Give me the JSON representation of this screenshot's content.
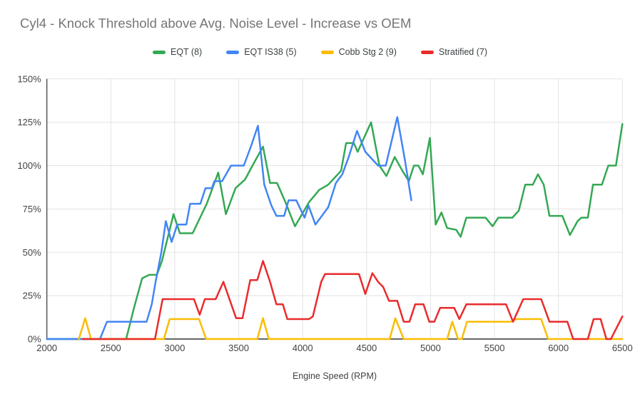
{
  "title": "Cyl4 - Knock Threshold above Avg. Noise Level - Increase vs OEM",
  "axes": {
    "x": {
      "label": "Engine Speed (RPM)",
      "min": 2000,
      "max": 6500,
      "ticks": [
        2000,
        2500,
        3000,
        3500,
        4000,
        4500,
        5000,
        5500,
        6000,
        6500
      ]
    },
    "y": {
      "label": "",
      "min": 0,
      "max": 150,
      "tick_step_pct": 25,
      "ticks": [
        "0%",
        "25%",
        "50%",
        "75%",
        "100%",
        "125%",
        "150%"
      ]
    }
  },
  "style": {
    "grid_color": "#e3e3e3",
    "axis_color": "#333333",
    "title_color": "#757575",
    "background": "#ffffff"
  },
  "chart_data": {
    "type": "line",
    "title": "Cyl4 - Knock Threshold above Avg. Noise Level - Increase vs OEM",
    "xlabel": "Engine Speed (RPM)",
    "ylabel": "",
    "x_range": [
      2000,
      6500
    ],
    "y_range_pct": [
      0,
      150
    ],
    "grid": true,
    "legend_position": "top",
    "series": [
      {
        "name": "EQT (8)",
        "color": "#34a853",
        "points": [
          [
            2000,
            0
          ],
          [
            2620,
            0
          ],
          [
            2685,
            19
          ],
          [
            2745,
            35
          ],
          [
            2800,
            37
          ],
          [
            2860,
            37
          ],
          [
            2900,
            45
          ],
          [
            2950,
            60
          ],
          [
            2990,
            72
          ],
          [
            3040,
            61
          ],
          [
            3140,
            61
          ],
          [
            3250,
            78
          ],
          [
            3340,
            96
          ],
          [
            3400,
            72
          ],
          [
            3475,
            87
          ],
          [
            3550,
            92
          ],
          [
            3600,
            99
          ],
          [
            3690,
            111
          ],
          [
            3745,
            90
          ],
          [
            3800,
            90
          ],
          [
            3865,
            79
          ],
          [
            3940,
            65
          ],
          [
            4050,
            79
          ],
          [
            4130,
            86
          ],
          [
            4200,
            89
          ],
          [
            4300,
            97
          ],
          [
            4340,
            113
          ],
          [
            4400,
            113
          ],
          [
            4430,
            108
          ],
          [
            4535,
            125
          ],
          [
            4600,
            100
          ],
          [
            4655,
            94
          ],
          [
            4720,
            105
          ],
          [
            4780,
            97
          ],
          [
            4830,
            91
          ],
          [
            4870,
            100
          ],
          [
            4905,
            100
          ],
          [
            4940,
            95
          ],
          [
            4995,
            116
          ],
          [
            5040,
            66
          ],
          [
            5085,
            73
          ],
          [
            5130,
            64
          ],
          [
            5200,
            63
          ],
          [
            5235,
            59
          ],
          [
            5280,
            70
          ],
          [
            5430,
            70
          ],
          [
            5485,
            65
          ],
          [
            5530,
            70
          ],
          [
            5640,
            70
          ],
          [
            5690,
            74
          ],
          [
            5740,
            89
          ],
          [
            5800,
            89
          ],
          [
            5840,
            95
          ],
          [
            5885,
            89
          ],
          [
            5930,
            71
          ],
          [
            6030,
            71
          ],
          [
            6090,
            60
          ],
          [
            6150,
            68
          ],
          [
            6180,
            70
          ],
          [
            6230,
            70
          ],
          [
            6270,
            89
          ],
          [
            6340,
            89
          ],
          [
            6390,
            100
          ],
          [
            6450,
            100
          ],
          [
            6500,
            124
          ]
        ]
      },
      {
        "name": "EQT IS38 (5)",
        "color": "#4285f4",
        "points": [
          [
            2000,
            0
          ],
          [
            2415,
            0
          ],
          [
            2470,
            10
          ],
          [
            2780,
            10
          ],
          [
            2820,
            20
          ],
          [
            2850,
            33
          ],
          [
            2895,
            50
          ],
          [
            2930,
            68
          ],
          [
            2975,
            56
          ],
          [
            3020,
            66
          ],
          [
            3090,
            66
          ],
          [
            3120,
            78
          ],
          [
            3200,
            78
          ],
          [
            3240,
            87
          ],
          [
            3290,
            87
          ],
          [
            3310,
            91
          ],
          [
            3370,
            91
          ],
          [
            3440,
            100
          ],
          [
            3540,
            100
          ],
          [
            3600,
            112
          ],
          [
            3650,
            123
          ],
          [
            3700,
            89
          ],
          [
            3755,
            77
          ],
          [
            3795,
            71
          ],
          [
            3855,
            71
          ],
          [
            3890,
            80
          ],
          [
            3950,
            80
          ],
          [
            4015,
            70
          ],
          [
            4045,
            77
          ],
          [
            4100,
            66
          ],
          [
            4150,
            71
          ],
          [
            4200,
            76
          ],
          [
            4260,
            90
          ],
          [
            4310,
            95
          ],
          [
            4360,
            105
          ],
          [
            4425,
            120
          ],
          [
            4490,
            108
          ],
          [
            4590,
            100
          ],
          [
            4650,
            100
          ],
          [
            4740,
            128
          ],
          [
            4800,
            103
          ],
          [
            4850,
            80
          ]
        ]
      },
      {
        "name": "Cobb Stg 2 (9)",
        "color": "#fbbc04",
        "points": [
          [
            2250,
            0
          ],
          [
            2300,
            12
          ],
          [
            2345,
            0
          ],
          [
            2915,
            0
          ],
          [
            2960,
            11.5
          ],
          [
            3190,
            11.5
          ],
          [
            3245,
            0
          ],
          [
            3645,
            0
          ],
          [
            3690,
            12
          ],
          [
            3735,
            0
          ],
          [
            4680,
            0
          ],
          [
            4725,
            12
          ],
          [
            4790,
            0
          ],
          [
            5130,
            0
          ],
          [
            5170,
            10
          ],
          [
            5215,
            0
          ],
          [
            5245,
            0
          ],
          [
            5285,
            10
          ],
          [
            5630,
            10
          ],
          [
            5670,
            11.5
          ],
          [
            5865,
            11.5
          ],
          [
            5920,
            0
          ],
          [
            6500,
            0
          ]
        ]
      },
      {
        "name": "Stratified (7)",
        "color": "#ea2b2b",
        "points": [
          [
            2280,
            0
          ],
          [
            2845,
            0
          ],
          [
            2905,
            23
          ],
          [
            3150,
            23
          ],
          [
            3195,
            14
          ],
          [
            3235,
            23
          ],
          [
            3320,
            23
          ],
          [
            3380,
            33
          ],
          [
            3480,
            12
          ],
          [
            3530,
            12
          ],
          [
            3590,
            34
          ],
          [
            3645,
            34
          ],
          [
            3690,
            45
          ],
          [
            3745,
            33
          ],
          [
            3795,
            20
          ],
          [
            3845,
            20
          ],
          [
            3880,
            11.5
          ],
          [
            4050,
            11.5
          ],
          [
            4080,
            13
          ],
          [
            4145,
            33
          ],
          [
            4175,
            37.5
          ],
          [
            4440,
            37.5
          ],
          [
            4490,
            26
          ],
          [
            4545,
            38
          ],
          [
            4590,
            33
          ],
          [
            4630,
            30
          ],
          [
            4675,
            22
          ],
          [
            4740,
            22
          ],
          [
            4790,
            10
          ],
          [
            4835,
            10
          ],
          [
            4880,
            20
          ],
          [
            4945,
            20
          ],
          [
            4990,
            10
          ],
          [
            5030,
            10
          ],
          [
            5075,
            18
          ],
          [
            5185,
            18
          ],
          [
            5225,
            11.5
          ],
          [
            5280,
            20
          ],
          [
            5590,
            20
          ],
          [
            5645,
            10
          ],
          [
            5725,
            23
          ],
          [
            5865,
            23
          ],
          [
            5930,
            10
          ],
          [
            6070,
            10
          ],
          [
            6115,
            0
          ],
          [
            6230,
            0
          ],
          [
            6275,
            11.5
          ],
          [
            6330,
            11.5
          ],
          [
            6375,
            0
          ],
          [
            6410,
            0
          ],
          [
            6500,
            13
          ]
        ]
      }
    ]
  }
}
